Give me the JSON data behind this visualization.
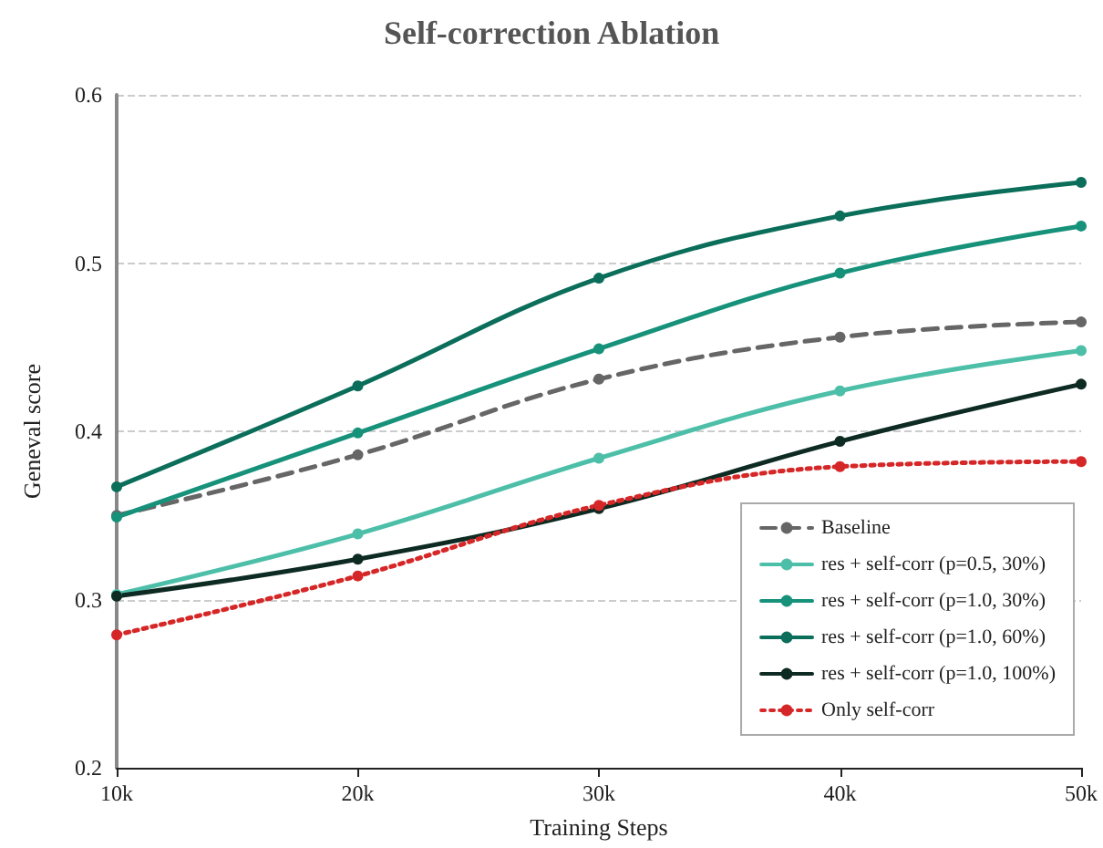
{
  "chart_data": {
    "type": "line",
    "title": "Self-correction Ablation",
    "xlabel": "Training Steps",
    "ylabel": "Geneval score",
    "x": [
      10000,
      20000,
      30000,
      40000,
      50000
    ],
    "xlim": [
      10000,
      50000
    ],
    "xticks": [
      {
        "value": 10000,
        "label": "10k"
      },
      {
        "value": 20000,
        "label": "20k"
      },
      {
        "value": 30000,
        "label": "30k"
      },
      {
        "value": 40000,
        "label": "40k"
      },
      {
        "value": 50000,
        "label": "50k"
      }
    ],
    "ylim": [
      0.2,
      0.6
    ],
    "yticks": [
      0.2,
      0.3,
      0.4,
      0.5,
      0.6
    ],
    "grid": "y",
    "legend": "bottom right",
    "marker": "circle",
    "series": [
      {
        "name": "Baseline",
        "color": "#666666",
        "line_style": "dashed",
        "values": [
          0.35,
          0.386,
          0.431,
          0.456,
          0.465
        ]
      },
      {
        "name": "res + self-corr (p=0.5, 30%)",
        "color": "#4dbfa8",
        "line_style": "solid",
        "values": [
          0.303,
          0.339,
          0.384,
          0.424,
          0.448
        ]
      },
      {
        "name": "res + self-corr (p=1.0, 30%)",
        "color": "#16917a",
        "line_style": "solid",
        "values": [
          0.349,
          0.399,
          0.449,
          0.494,
          0.522
        ]
      },
      {
        "name": "res + self-corr (p=1.0, 60%)",
        "color": "#0b6e5a",
        "line_style": "solid",
        "values": [
          0.367,
          0.427,
          0.491,
          0.528,
          0.548
        ]
      },
      {
        "name": "res + self-corr (p=1.0, 100%)",
        "color": "#0d2b22",
        "line_style": "solid",
        "values": [
          0.302,
          0.324,
          0.354,
          0.394,
          0.428
        ]
      },
      {
        "name": "Only self-corr",
        "color": "#d62728",
        "line_style": "dotted",
        "values": [
          0.279,
          0.314,
          0.356,
          0.379,
          0.382
        ]
      }
    ]
  }
}
